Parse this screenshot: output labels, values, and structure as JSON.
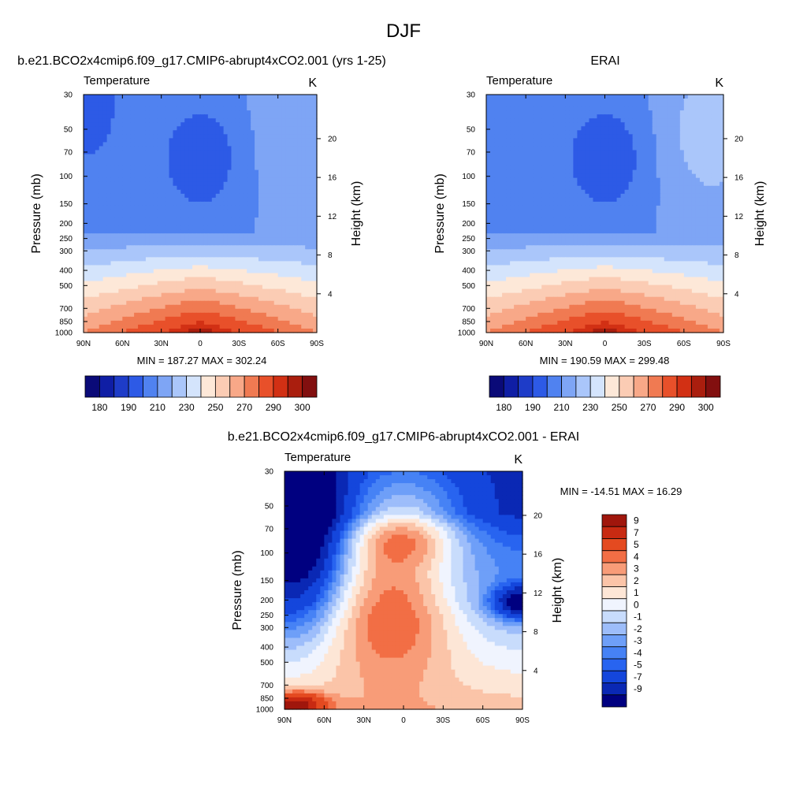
{
  "figure": {
    "title": "DJF"
  },
  "colors": {
    "abs_palette": [
      "#0a0a78",
      "#0f1ea5",
      "#1e3cc8",
      "#2d5ae6",
      "#5082f0",
      "#7ea5f5",
      "#aac6fa",
      "#d4e4fc",
      "#fde8d8",
      "#fbccb4",
      "#f8a888",
      "#f07a52",
      "#e8502a",
      "#d23014",
      "#aa1e0e",
      "#820f0f"
    ],
    "diff_palette": [
      "#000080",
      "#0a28b4",
      "#1446dc",
      "#2864f0",
      "#4682f5",
      "#6e9ff8",
      "#9dbdfa",
      "#c8dcfc",
      "#f0f4fe",
      "#fde6d6",
      "#fbc4a8",
      "#f89c78",
      "#f26e45",
      "#e44a20",
      "#c82a12",
      "#a0160c",
      "#820a0a"
    ]
  },
  "chart_data": [
    {
      "type": "heatmap",
      "panel": "top-left",
      "title": "b.e21.BCO2x4cmip6.f09_g17.CMIP6-abrupt4xCO2.001 (yrs 1-25)",
      "subtitle_left": "Temperature",
      "units": "K",
      "ylabel": "Pressure (mb)",
      "ylabel_right": "Height (km)",
      "x_ticks": [
        "90N",
        "60N",
        "30N",
        "0",
        "30S",
        "60S",
        "90S"
      ],
      "y_ticks": [
        "30",
        "50",
        "70",
        "100",
        "150",
        "200",
        "250",
        "300",
        "400",
        "500",
        "700",
        "850",
        "1000"
      ],
      "right_ticks": [
        "20",
        "16",
        "12",
        "8",
        "4"
      ],
      "stats": "MIN = 187.27  MAX = 302.24",
      "min": 187.27,
      "max": 302.24,
      "colorbar_labels": [
        "180",
        "190",
        "210",
        "230",
        "250",
        "270",
        "290",
        "300"
      ]
    },
    {
      "type": "heatmap",
      "panel": "top-right",
      "title": "ERAI",
      "subtitle_left": "Temperature",
      "units": "K",
      "ylabel": "Pressure (mb)",
      "ylabel_right": "Height (km)",
      "x_ticks": [
        "90N",
        "60N",
        "30N",
        "0",
        "30S",
        "60S",
        "90S"
      ],
      "y_ticks": [
        "30",
        "50",
        "70",
        "100",
        "150",
        "200",
        "250",
        "300",
        "400",
        "500",
        "700",
        "850",
        "1000"
      ],
      "right_ticks": [
        "20",
        "16",
        "12",
        "8",
        "4"
      ],
      "stats": "MIN = 190.59  MAX = 299.48",
      "min": 190.59,
      "max": 299.48,
      "colorbar_labels": [
        "180",
        "190",
        "210",
        "230",
        "250",
        "270",
        "290",
        "300"
      ]
    },
    {
      "type": "heatmap",
      "panel": "bottom",
      "title": "b.e21.BCO2x4cmip6.f09_g17.CMIP6-abrupt4xCO2.001 - ERAI",
      "subtitle_left": "Temperature",
      "units": "K",
      "ylabel": "Pressure (mb)",
      "ylabel_right": "Height (km)",
      "x_ticks": [
        "90N",
        "60N",
        "30N",
        "0",
        "30S",
        "60S",
        "90S"
      ],
      "y_ticks": [
        "30",
        "50",
        "70",
        "100",
        "150",
        "200",
        "250",
        "300",
        "400",
        "500",
        "700",
        "850",
        "1000"
      ],
      "right_ticks": [
        "20",
        "16",
        "12",
        "8",
        "4"
      ],
      "stats": "MIN = -14.51  MAX =  16.29",
      "min": -14.51,
      "max": 16.29,
      "colorbar_labels": [
        "9",
        "7",
        "5",
        "4",
        "3",
        "2",
        "1",
        "0",
        "-1",
        "-2",
        "-3",
        "-4",
        "-5",
        "-7",
        "-9"
      ]
    }
  ]
}
